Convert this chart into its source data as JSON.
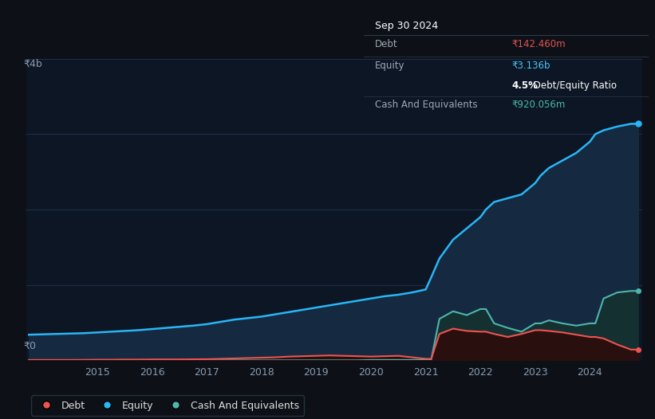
{
  "background_color": "#0d1117",
  "plot_bg_color": "#0c1624",
  "title_box": {
    "date": "Sep 30 2024",
    "debt_label": "Debt",
    "debt_value": "₹142.460m",
    "debt_color": "#e05252",
    "equity_label": "Equity",
    "equity_value": "₹3.136b",
    "equity_color": "#4fc3f7",
    "ratio_text": "4.5% Debt/Equity Ratio",
    "ratio_bold": "4.5%",
    "cash_label": "Cash And Equivalents",
    "cash_value": "₹920.056m",
    "cash_color": "#4db6ac"
  },
  "y_label_top": "₹4b",
  "y_label_bottom": "₹0",
  "x_ticks": [
    2015,
    2016,
    2017,
    2018,
    2019,
    2020,
    2021,
    2022,
    2023,
    2024
  ],
  "equity_color": "#29b6f6",
  "debt_color": "#ef5350",
  "cash_color": "#4db6ac",
  "ylim_max": 4000000000,
  "xlim": [
    2013.7,
    2024.95
  ],
  "years": [
    2013.75,
    2014.0,
    2014.25,
    2014.5,
    2014.75,
    2015.0,
    2015.25,
    2015.5,
    2015.75,
    2016.0,
    2016.25,
    2016.5,
    2016.75,
    2017.0,
    2017.25,
    2017.5,
    2017.75,
    2018.0,
    2018.25,
    2018.5,
    2018.75,
    2019.0,
    2019.25,
    2019.5,
    2019.75,
    2020.0,
    2020.25,
    2020.5,
    2020.75,
    2021.0,
    2021.1,
    2021.25,
    2021.5,
    2021.75,
    2022.0,
    2022.1,
    2022.25,
    2022.5,
    2022.75,
    2023.0,
    2023.1,
    2023.25,
    2023.5,
    2023.75,
    2024.0,
    2024.1,
    2024.25,
    2024.5,
    2024.75,
    2024.88
  ],
  "equity_values": [
    340000000,
    345000000,
    350000000,
    355000000,
    360000000,
    370000000,
    380000000,
    390000000,
    400000000,
    415000000,
    430000000,
    445000000,
    460000000,
    480000000,
    510000000,
    540000000,
    560000000,
    580000000,
    610000000,
    640000000,
    670000000,
    700000000,
    730000000,
    760000000,
    790000000,
    820000000,
    850000000,
    870000000,
    900000000,
    940000000,
    1100000000,
    1350000000,
    1600000000,
    1750000000,
    1900000000,
    2000000000,
    2100000000,
    2150000000,
    2200000000,
    2350000000,
    2450000000,
    2550000000,
    2650000000,
    2750000000,
    2900000000,
    3000000000,
    3050000000,
    3100000000,
    3136000000,
    3136000000
  ],
  "debt_values": [
    5000000,
    5000000,
    5000000,
    5000000,
    6000000,
    8000000,
    8000000,
    10000000,
    10000000,
    12000000,
    12000000,
    12000000,
    14000000,
    15000000,
    20000000,
    25000000,
    30000000,
    35000000,
    40000000,
    50000000,
    55000000,
    60000000,
    65000000,
    60000000,
    55000000,
    50000000,
    55000000,
    60000000,
    40000000,
    20000000,
    20000000,
    350000000,
    420000000,
    390000000,
    380000000,
    380000000,
    350000000,
    310000000,
    350000000,
    400000000,
    400000000,
    390000000,
    370000000,
    340000000,
    310000000,
    310000000,
    290000000,
    210000000,
    142460000,
    142460000
  ],
  "cash_values": [
    0,
    0,
    0,
    0,
    0,
    0,
    0,
    0,
    0,
    0,
    0,
    0,
    0,
    0,
    0,
    0,
    0,
    0,
    0,
    0,
    0,
    0,
    0,
    0,
    0,
    5000000,
    5000000,
    5000000,
    5000000,
    8000000,
    8000000,
    550000000,
    650000000,
    600000000,
    680000000,
    680000000,
    490000000,
    430000000,
    380000000,
    490000000,
    490000000,
    530000000,
    490000000,
    460000000,
    490000000,
    490000000,
    820000000,
    900000000,
    920056000,
    920056000
  ],
  "legend_items": [
    {
      "label": "Debt",
      "color": "#ef5350"
    },
    {
      "label": "Equity",
      "color": "#29b6f6"
    },
    {
      "label": "Cash And Equivalents",
      "color": "#4db6ac"
    }
  ]
}
